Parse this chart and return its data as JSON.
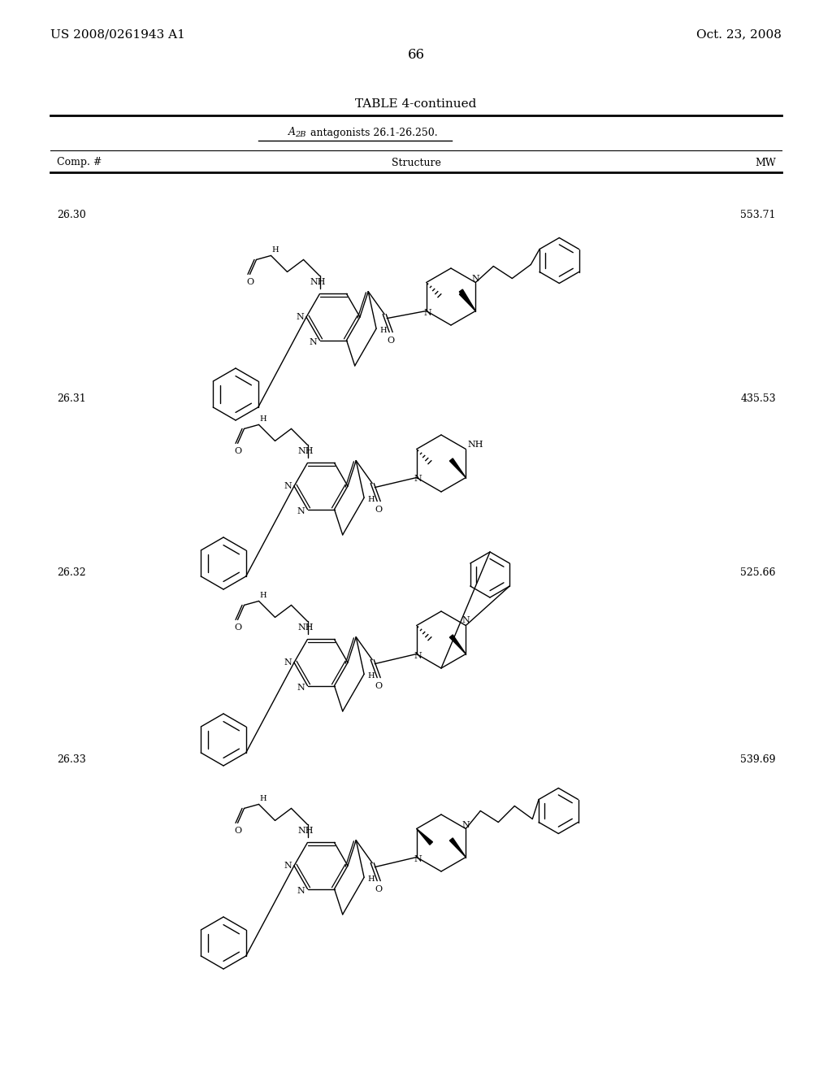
{
  "background_color": "#ffffff",
  "header_left": "US 2008/0261943 A1",
  "header_right": "Oct. 23, 2008",
  "page_number": "66",
  "table_title": "TABLE 4-continued",
  "subtitle_a": "A",
  "subtitle_2b": "2B",
  "subtitle_rest": " antagonists 26.1-26.250.",
  "col_comp": "Comp. #",
  "col_struct": "Structure",
  "col_mw": "MW",
  "rows": [
    {
      "comp": "26.30",
      "mw": "553.71"
    },
    {
      "comp": "26.31",
      "mw": "435.53"
    },
    {
      "comp": "26.32",
      "mw": "525.66"
    },
    {
      "comp": "26.33",
      "mw": "539.69"
    }
  ]
}
